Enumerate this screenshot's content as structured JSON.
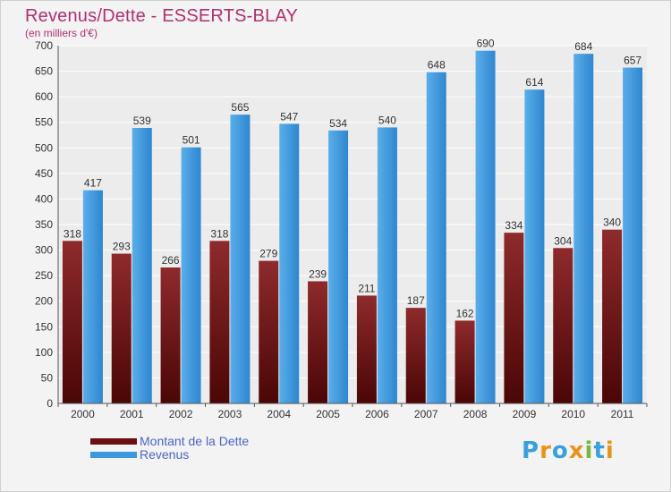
{
  "title": "Revenus/Dette - ESSERTS-BLAY",
  "subtitle": "(en milliers d'€)",
  "logo": {
    "letters": [
      "P",
      "r",
      "o",
      "x",
      "i",
      "t",
      "i"
    ],
    "colors": [
      "#3aa0dc",
      "#e8941a",
      "#3aa0dc",
      "#e8941a",
      "#7ab640",
      "#3aa0dc",
      "#e8941a"
    ]
  },
  "chart_data": {
    "type": "bar",
    "categories": [
      "2000",
      "2001",
      "2002",
      "2003",
      "2004",
      "2005",
      "2006",
      "2007",
      "2008",
      "2009",
      "2010",
      "2011"
    ],
    "series": [
      {
        "name": "Montant de la Dette",
        "color": "#7a1a1e",
        "values": [
          318,
          293,
          266,
          318,
          279,
          239,
          211,
          187,
          162,
          334,
          304,
          340
        ]
      },
      {
        "name": "Revenus",
        "color": "#3d97de",
        "values": [
          417,
          539,
          501,
          565,
          547,
          534,
          540,
          648,
          690,
          614,
          684,
          657
        ]
      }
    ],
    "ylim": [
      0,
      700
    ],
    "yticks": [
      0,
      50,
      100,
      150,
      200,
      250,
      300,
      350,
      400,
      450,
      500,
      550,
      600,
      650,
      700
    ],
    "grid": true,
    "legend": "bottom-left"
  }
}
